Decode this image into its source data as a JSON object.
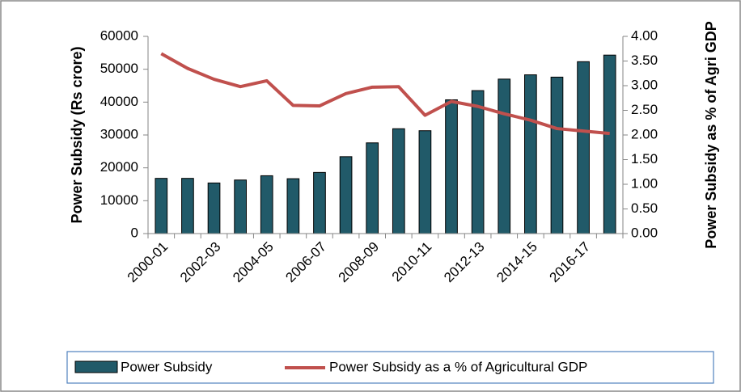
{
  "chart_data": {
    "type": "bar",
    "categories": [
      "2000-01",
      null,
      "2002-03",
      null,
      "2004-05",
      null,
      "2006-07",
      null,
      "2008-09",
      null,
      "2010-11",
      null,
      "2012-13",
      null,
      "2014-15",
      null,
      "2016-17",
      null
    ],
    "series": [
      {
        "name": "Power Subsidy",
        "color": "#215a69",
        "type": "bar",
        "values": [
          16800,
          16800,
          15400,
          16300,
          17600,
          16700,
          18600,
          23400,
          27600,
          31900,
          31300,
          40700,
          43500,
          47000,
          48300,
          47600,
          52300,
          54300
        ]
      },
      {
        "name": "Power Subsidy as a % of Agricultural GDP",
        "color": "#c0504d",
        "type": "line",
        "axis": "y2",
        "values": [
          3.65,
          3.35,
          3.13,
          2.98,
          3.1,
          2.6,
          2.59,
          2.84,
          2.97,
          2.98,
          2.4,
          2.68,
          2.58,
          2.43,
          2.3,
          2.13,
          2.08,
          2.03
        ]
      }
    ],
    "y_label": "Power Subsidy (Rs crore)",
    "y2_label": "Power Subsidy as % of Agri GDP",
    "ylim": [
      0,
      60000
    ],
    "yticks": [
      0,
      10000,
      20000,
      30000,
      40000,
      50000,
      60000
    ],
    "y2lim": [
      0,
      4
    ],
    "y2ticks": [
      {
        "value": 0,
        "label": "0.00"
      },
      {
        "value": 0.5,
        "label": "0.50"
      },
      {
        "value": 1,
        "label": "1.00"
      },
      {
        "value": 1.5,
        "label": "1.50"
      },
      {
        "value": 2,
        "label": "2.00"
      },
      {
        "value": 2.5,
        "label": "2.50"
      },
      {
        "value": 3,
        "label": "3.00"
      },
      {
        "value": 3.5,
        "label": "3.50"
      },
      {
        "value": 4,
        "label": "4.00"
      }
    ],
    "legend": "bottom"
  }
}
